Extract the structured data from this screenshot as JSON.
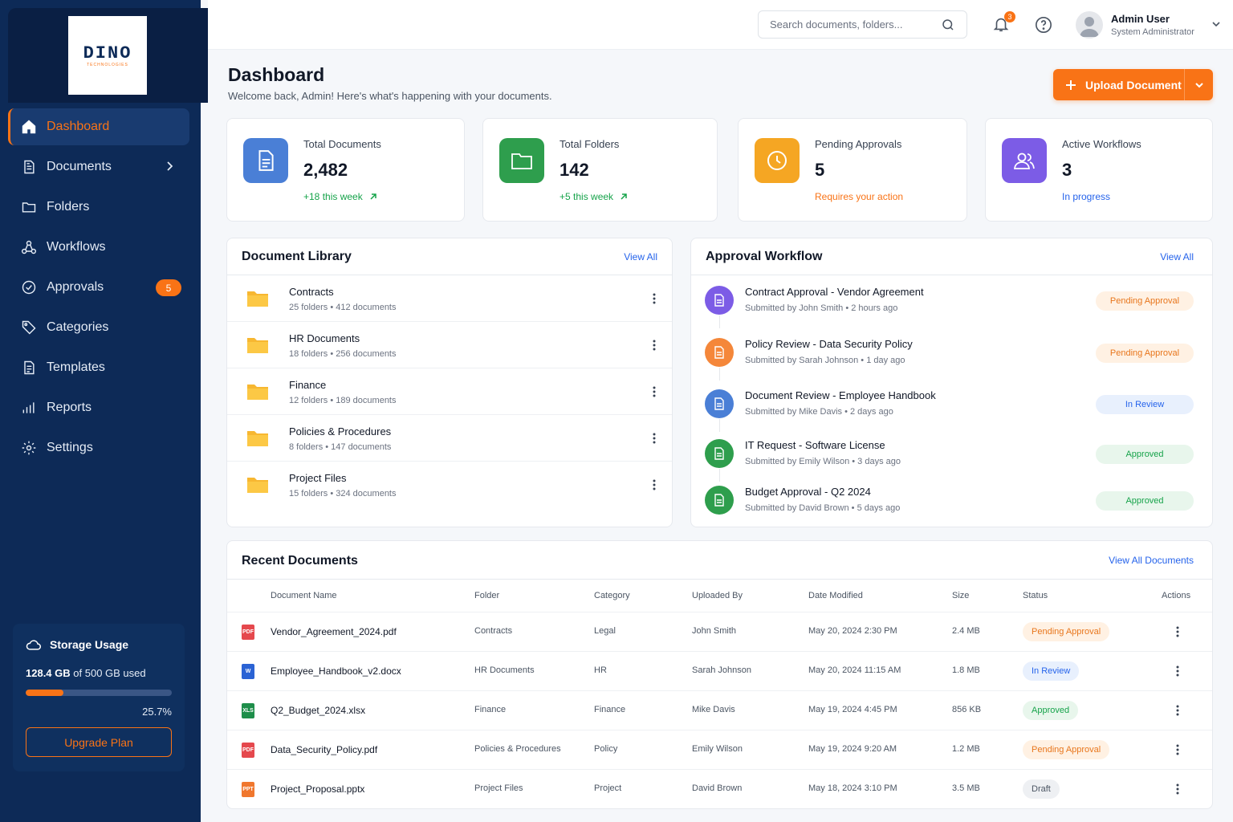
{
  "brand": {
    "name": "DINO",
    "tagline": "TECHNOLOGIES"
  },
  "sidebar": {
    "items": [
      {
        "label": "Dashboard",
        "icon": "home-icon"
      },
      {
        "label": "Documents",
        "icon": "document-icon"
      },
      {
        "label": "Folders",
        "icon": "folder-icon"
      },
      {
        "label": "Workflows",
        "icon": "workflow-icon"
      },
      {
        "label": "Approvals",
        "icon": "check-circle-icon",
        "badge": "5"
      },
      {
        "label": "Categories",
        "icon": "tag-icon"
      },
      {
        "label": "Templates",
        "icon": "template-icon"
      },
      {
        "label": "Reports",
        "icon": "bar-chart-icon"
      },
      {
        "label": "Settings",
        "icon": "gear-icon"
      }
    ],
    "storage": {
      "title": "Storage Usage",
      "used": "128.4 GB",
      "of_text": "of 500 GB used",
      "percent_label": "25.7%",
      "percent": 25.7,
      "button": "Upgrade Plan"
    }
  },
  "topbar": {
    "search_placeholder": "Search documents, folders...",
    "notifications_count": "3",
    "user": {
      "name": "Admin User",
      "role": "System Administrator"
    }
  },
  "page": {
    "title": "Dashboard",
    "subtitle": "Welcome back, Admin! Here's what's happening with your documents.",
    "upload_label": "Upload Document"
  },
  "stats": [
    {
      "label": "Total Documents",
      "value": "2,482",
      "note": "+18 this week",
      "color": "#4a7fd6",
      "note_color": "#16a34a"
    },
    {
      "label": "Total Folders",
      "value": "142",
      "note": "+5 this week",
      "color": "#2e9e4d",
      "note_color": "#16a34a"
    },
    {
      "label": "Pending Approvals",
      "value": "5",
      "note": "Requires your action",
      "color": "#f5a623",
      "note_color": "#f97316"
    },
    {
      "label": "Active Workflows",
      "value": "3",
      "note": "In progress",
      "color": "#7c5ce6",
      "note_color": "#2563eb"
    }
  ],
  "library": {
    "title": "Document Library",
    "view_all": "View All",
    "items": [
      {
        "name": "Contracts",
        "meta": "25 folders  •  412 documents"
      },
      {
        "name": "HR Documents",
        "meta": "18 folders  •  256 documents"
      },
      {
        "name": "Finance",
        "meta": "12 folders  •  189 documents"
      },
      {
        "name": "Policies & Procedures",
        "meta": "8 folders  •  147 documents"
      },
      {
        "name": "Project Files",
        "meta": "15 folders  •  324 documents"
      }
    ]
  },
  "workflow": {
    "title": "Approval Workflow",
    "view_all": "View All",
    "items": [
      {
        "title": "Contract Approval - Vendor Agreement",
        "meta": "Submitted by John Smith  •  2 hours ago",
        "status": "Pending Approval",
        "icon_color": "#7c5ce6"
      },
      {
        "title": "Policy Review - Data Security Policy",
        "meta": "Submitted by Sarah Johnson  •  1 day ago",
        "status": "Pending Approval",
        "icon_color": "#f5873a"
      },
      {
        "title": "Document Review - Employee Handbook",
        "meta": "Submitted by Mike Davis  •  2 days ago",
        "status": "In Review",
        "icon_color": "#4a7fd6"
      },
      {
        "title": "IT Request - Software License",
        "meta": "Submitted by Emily Wilson  •  3 days ago",
        "status": "Approved",
        "icon_color": "#2e9e4d"
      },
      {
        "title": "Budget Approval - Q2 2024",
        "meta": "Submitted by David Brown  •  5 days ago",
        "status": "Approved",
        "icon_color": "#2e9e4d"
      }
    ]
  },
  "recent": {
    "title": "Recent Documents",
    "view_all": "View All Documents",
    "columns": [
      "Document Name",
      "Folder",
      "Category",
      "Uploaded By",
      "Date Modified",
      "Size",
      "Status",
      "Actions"
    ],
    "rows": [
      {
        "type": "PDF",
        "type_color": "#e5484d",
        "name": "Vendor_Agreement_2024.pdf",
        "folder": "Contracts",
        "category": "Legal",
        "uploaded_by": "John Smith",
        "date": "May 20, 2024 2:30 PM",
        "size": "2.4 MB",
        "status": "Pending Approval"
      },
      {
        "type": "W",
        "type_color": "#2b63d4",
        "name": "Employee_Handbook_v2.docx",
        "folder": "HR Documents",
        "category": "HR",
        "uploaded_by": "Sarah Johnson",
        "date": "May 20, 2024 11:15 AM",
        "size": "1.8 MB",
        "status": "In Review"
      },
      {
        "type": "XLS",
        "type_color": "#1e8e4a",
        "name": "Q2_Budget_2024.xlsx",
        "folder": "Finance",
        "category": "Finance",
        "uploaded_by": "Mike Davis",
        "date": "May 19, 2024 4:45 PM",
        "size": "856 KB",
        "status": "Approved"
      },
      {
        "type": "PDF",
        "type_color": "#e5484d",
        "name": "Data_Security_Policy.pdf",
        "folder": "Policies & Procedures",
        "category": "Policy",
        "uploaded_by": "Emily Wilson",
        "date": "May 19, 2024 9:20 AM",
        "size": "1.2 MB",
        "status": "Pending Approval"
      },
      {
        "type": "PPT",
        "type_color": "#f0772e",
        "name": "Project_Proposal.pptx",
        "folder": "Project Files",
        "category": "Project",
        "uploaded_by": "David Brown",
        "date": "May 18, 2024 3:10 PM",
        "size": "3.5 MB",
        "status": "Draft"
      }
    ]
  },
  "status_colors": {
    "Pending Approval": {
      "bg": "#fff1e3",
      "fg": "#e8761c"
    },
    "In Review": {
      "bg": "#e8f0fd",
      "fg": "#2563eb"
    },
    "Approved": {
      "bg": "#e8f6ec",
      "fg": "#16a34a"
    },
    "Draft": {
      "bg": "#eef0f3",
      "fg": "#4b5563"
    }
  }
}
